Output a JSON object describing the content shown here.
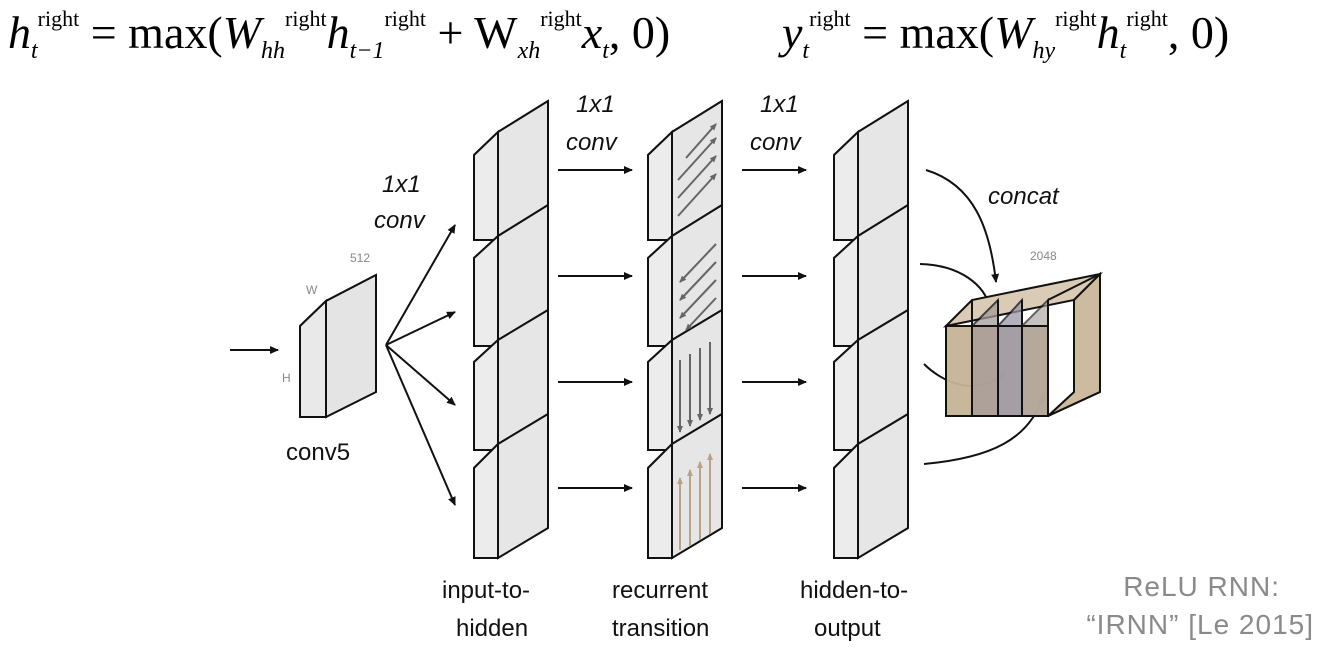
{
  "equations": {
    "left": {
      "h": "h",
      "t": "t",
      "right": "right",
      "eq": "= max(",
      "W1": "W",
      "hh": "hh",
      "h2": "h",
      "tminus1": "t−1",
      "plus": "+ W",
      "xh": "xh",
      "x": "x",
      "t2": "t",
      "zero": ", 0)"
    },
    "right": {
      "y": "y",
      "t": "t",
      "right": "right",
      "eq": "= max(",
      "W": "W",
      "hy": "hy",
      "h": "h",
      "t2": "t",
      "zero": ", 0)"
    }
  },
  "labels": {
    "conv_1x1_a": "1x1",
    "conv_a": "conv",
    "conv_1x1_b": "1x1",
    "conv_b": "conv",
    "conv_1x1_c": "1x1",
    "conv_c": "conv",
    "concat": "concat",
    "dim_512": "512",
    "dim_w": "W",
    "dim_h": "H",
    "dim_2048": "2048",
    "conv5": "conv5",
    "input_to_hidden_1": "input-to-",
    "input_to_hidden_2": "hidden",
    "recurrent_1": "recurrent",
    "recurrent_2": "transition",
    "hidden_to_output_1": "hidden-to-",
    "hidden_to_output_2": "output"
  },
  "caption": {
    "line1": "ReLU RNN:",
    "line2": "“IRNN” [Le 2015]"
  },
  "colors": {
    "box_face": "#e6e6e6",
    "box_stroke": "#111111",
    "concat_fill": "#c9b79c",
    "caption": "#8a8a8a"
  }
}
